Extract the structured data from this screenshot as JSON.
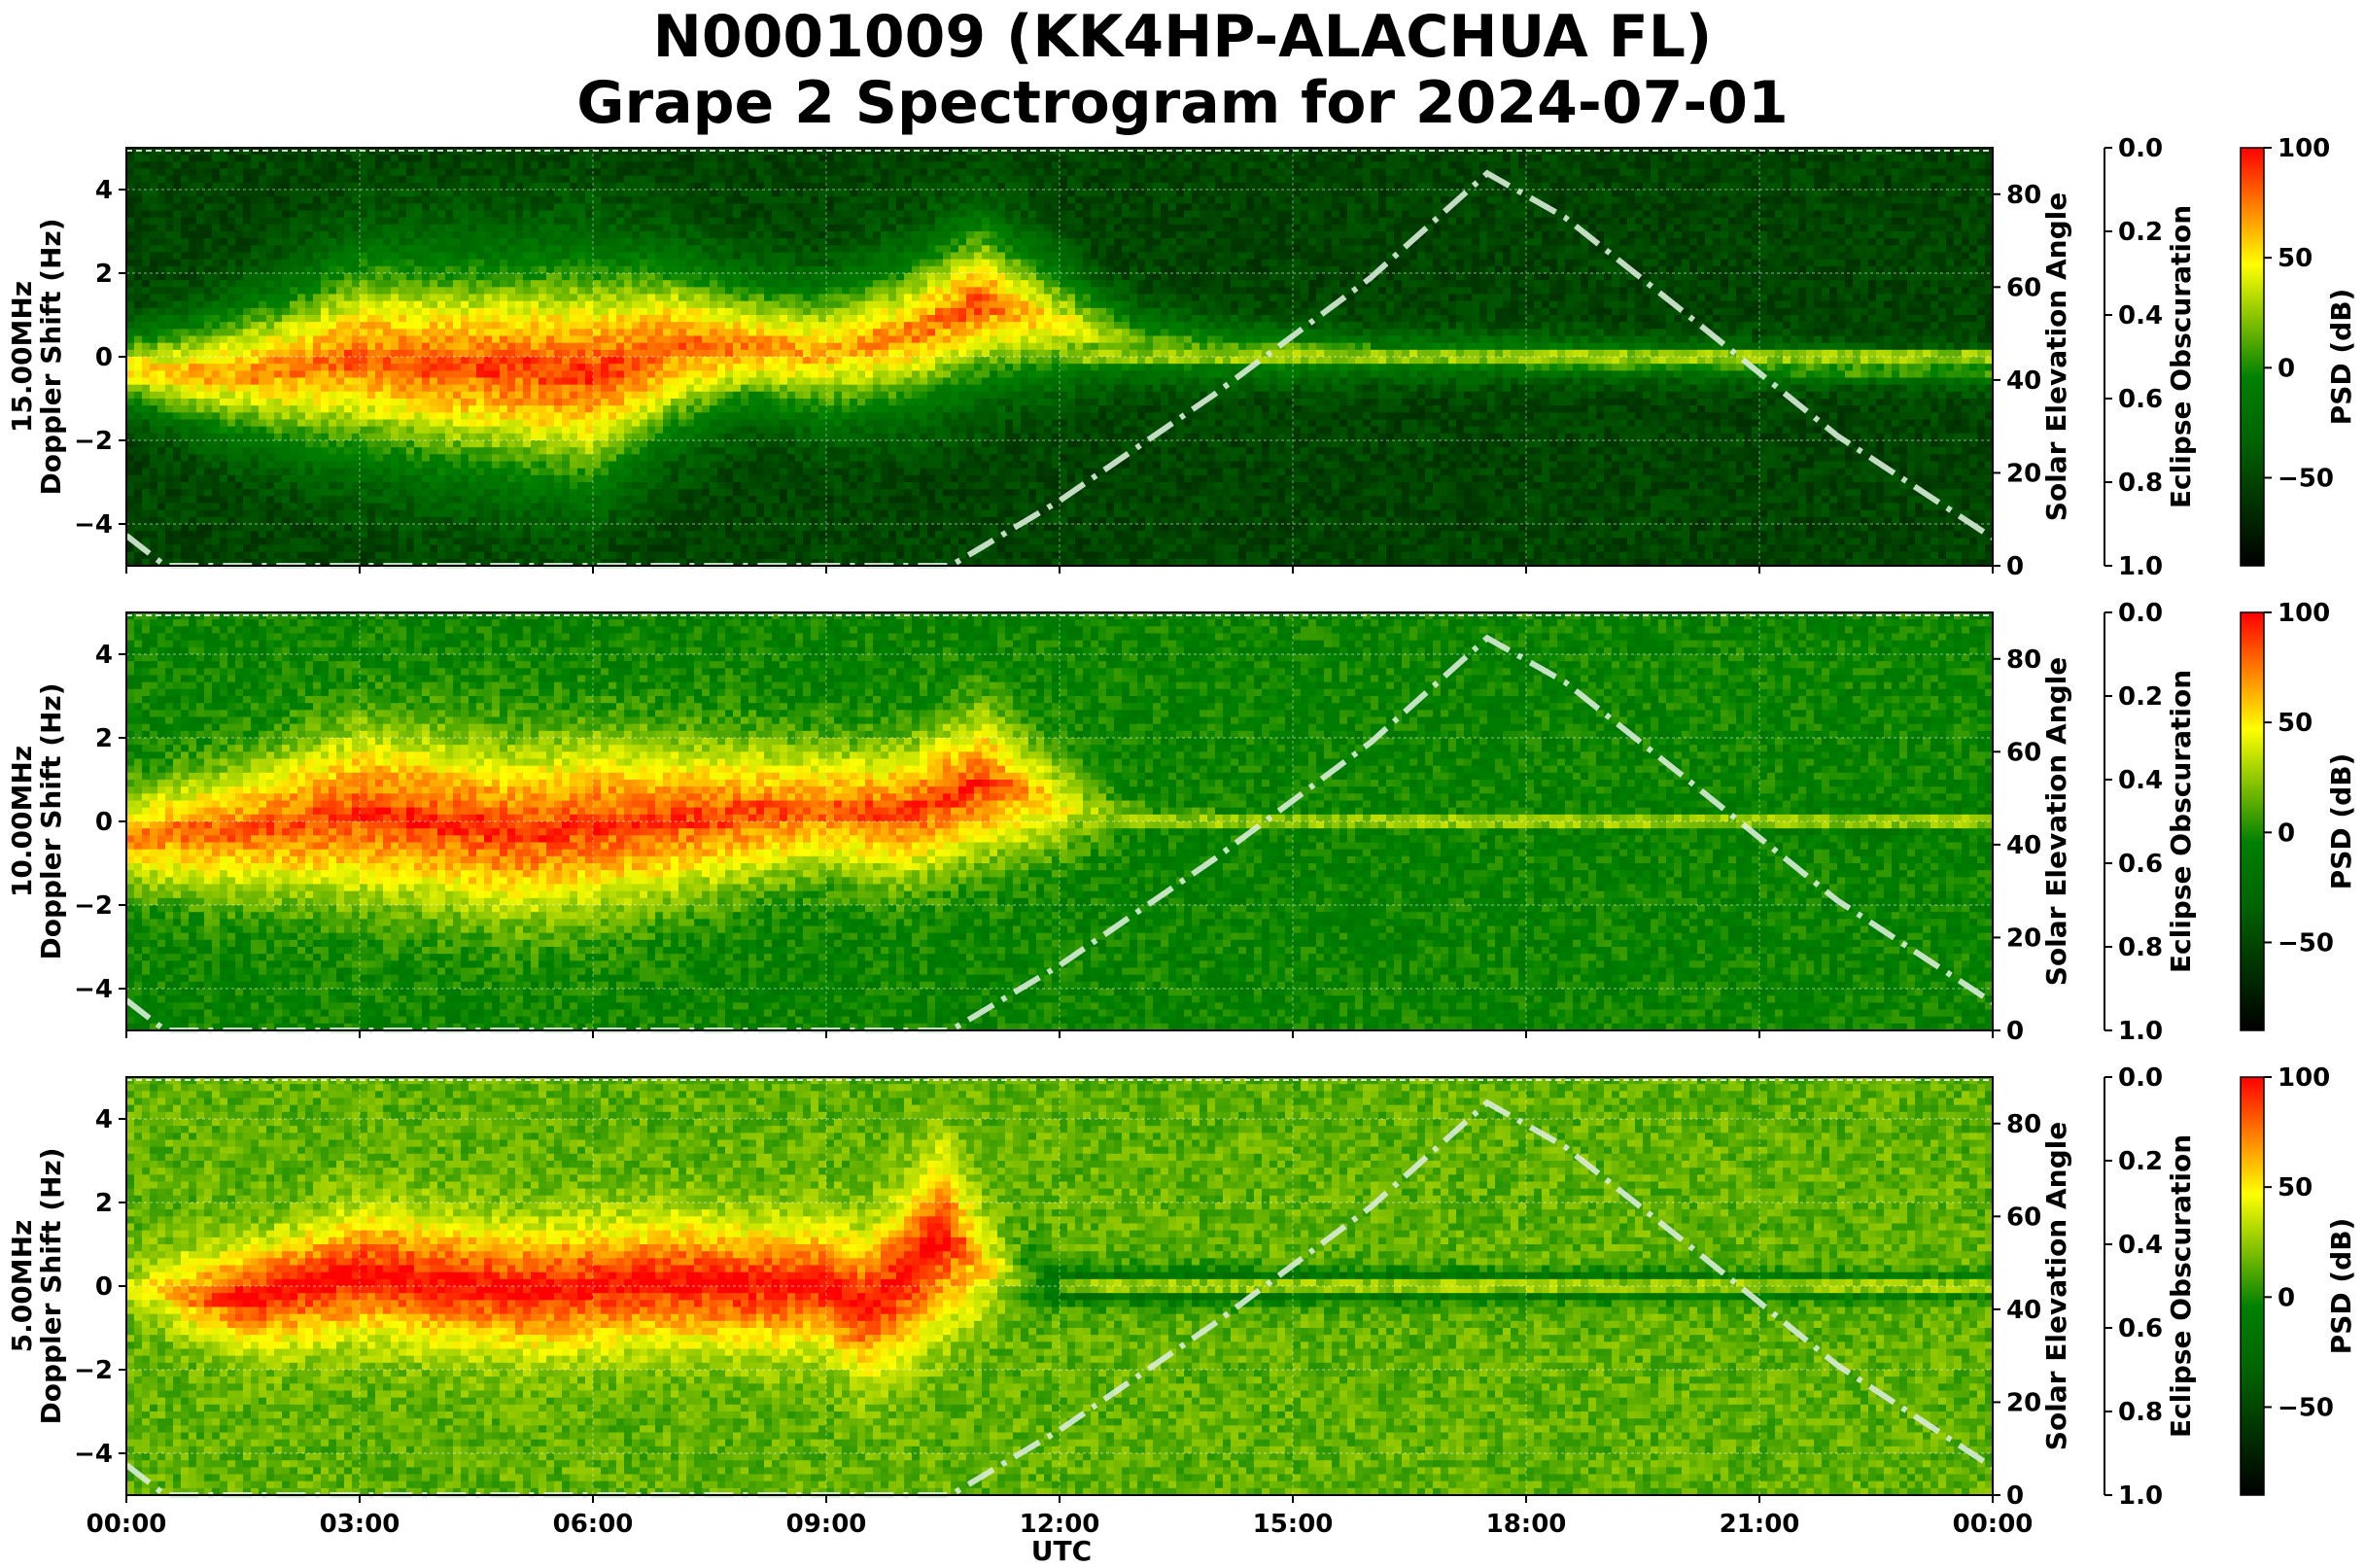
{
  "title_line1": "N0001009 (KK4HP-ALACHUA FL)",
  "title_line2": "Grape 2 Spectrogram for 2024-07-01",
  "chart_data": {
    "type": "heatmap",
    "x_label": "UTC",
    "x_ticks": [
      "00:00",
      "03:00",
      "06:00",
      "09:00",
      "12:00",
      "15:00",
      "18:00",
      "21:00",
      "00:00"
    ],
    "x_range_hours": [
      0,
      24
    ],
    "y_ylim": [
      -5,
      5
    ],
    "y_ticks": [
      4,
      2,
      0,
      -2,
      -4
    ],
    "y_tick_labels": [
      "4",
      "2",
      "0",
      "−2",
      "−4"
    ],
    "elev_label": "Solar Elevation Angle",
    "elev_ylim": [
      0,
      90
    ],
    "elev_ticks": [
      "0",
      "20",
      "40",
      "60",
      "80"
    ],
    "eclipse_label": "Eclipse Obscuration",
    "eclipse_ylim": [
      1.0,
      0.0
    ],
    "eclipse_ticks": [
      "0.0",
      "0.2",
      "0.4",
      "0.6",
      "0.8",
      "1.0"
    ],
    "colorbar_label": "PSD (dB)",
    "colorbar_range": [
      -90,
      100
    ],
    "colorbar_ticks": [
      100,
      50,
      0,
      -50
    ],
    "colorbar_tick_labels": [
      "100",
      "50",
      "0",
      "−50"
    ],
    "colormap": [
      "#000000",
      "#006400",
      "#008000",
      "#ffff00",
      "#ff0000"
    ],
    "solar_elevation": {
      "style": "dash-dot",
      "color": "#d8ecd8",
      "points": [
        [
          0,
          6.5
        ],
        [
          0.5,
          0
        ],
        [
          10.6,
          0
        ],
        [
          12,
          14
        ],
        [
          14,
          37
        ],
        [
          16,
          62
        ],
        [
          17.5,
          84.5
        ],
        [
          18.5,
          75
        ],
        [
          20,
          55
        ],
        [
          22,
          28
        ],
        [
          24,
          6
        ]
      ]
    },
    "panels": [
      {
        "ylabel_freq": "15.00MHz",
        "ylabel": "Doppler Shift (Hz)",
        "base_level": 0.2,
        "trace": [
          [
            0,
            -0.3
          ],
          [
            1,
            -0.4
          ],
          [
            2,
            -0.3
          ],
          [
            3,
            0
          ],
          [
            4,
            -0.2
          ],
          [
            5,
            -0.3
          ],
          [
            6,
            -0.4
          ],
          [
            7,
            0.2
          ],
          [
            8,
            0.3
          ],
          [
            9,
            0.1
          ],
          [
            10,
            0.5
          ],
          [
            11,
            1.3
          ],
          [
            12,
            0.8
          ],
          [
            13,
            0.3
          ],
          [
            14,
            0.1
          ],
          [
            16,
            0
          ],
          [
            18,
            0
          ],
          [
            20,
            -0.1
          ],
          [
            22,
            -0.2
          ],
          [
            24,
            -0.3
          ]
        ],
        "spread": [
          [
            0,
            0.6
          ],
          [
            3,
            1.6
          ],
          [
            6,
            1.8
          ],
          [
            8,
            1.0
          ],
          [
            11,
            1.3
          ],
          [
            13,
            0.6
          ],
          [
            16,
            0.4
          ],
          [
            24,
            0.3
          ]
        ],
        "intensity": [
          [
            0,
            0.7
          ],
          [
            3,
            0.85
          ],
          [
            6,
            0.9
          ],
          [
            9,
            0.75
          ],
          [
            11,
            0.85
          ],
          [
            13,
            0.5
          ],
          [
            16,
            0.45
          ],
          [
            20,
            0.45
          ],
          [
            24,
            0.45
          ]
        ]
      },
      {
        "ylabel_freq": "10.00MHz",
        "ylabel": "Doppler Shift (Hz)",
        "base_level": 0.45,
        "trace": [
          [
            0,
            -0.4
          ],
          [
            1.5,
            -0.2
          ],
          [
            3,
            0.2
          ],
          [
            4,
            0
          ],
          [
            5,
            -0.3
          ],
          [
            6,
            -0.1
          ],
          [
            7,
            0
          ],
          [
            8,
            0.2
          ],
          [
            9,
            0.3
          ],
          [
            10,
            0.2
          ],
          [
            11,
            0.9
          ],
          [
            12,
            0.4
          ],
          [
            13,
            0.2
          ],
          [
            14,
            0
          ],
          [
            18,
            0
          ],
          [
            24,
            0
          ]
        ],
        "spread": [
          [
            0,
            0.8
          ],
          [
            3,
            1.4
          ],
          [
            6,
            1.4
          ],
          [
            9,
            1.0
          ],
          [
            11,
            1.2
          ],
          [
            13,
            0.5
          ],
          [
            16,
            0.4
          ],
          [
            24,
            0.3
          ]
        ],
        "intensity": [
          [
            0,
            0.8
          ],
          [
            3,
            0.9
          ],
          [
            6,
            0.9
          ],
          [
            9,
            0.85
          ],
          [
            11,
            0.9
          ],
          [
            13,
            0.45
          ],
          [
            16,
            0.45
          ],
          [
            24,
            0.4
          ]
        ]
      },
      {
        "ylabel_freq": "5.00MHz",
        "ylabel": "Doppler Shift (Hz)",
        "base_level": 0.55,
        "trace": [
          [
            0,
            0
          ],
          [
            1.5,
            -0.3
          ],
          [
            3,
            0.3
          ],
          [
            4,
            0.1
          ],
          [
            5,
            -0.1
          ],
          [
            6,
            0
          ],
          [
            7,
            0.1
          ],
          [
            8,
            0
          ],
          [
            9,
            0
          ],
          [
            9.5,
            -0.5
          ],
          [
            10,
            0.2
          ],
          [
            10.5,
            1.2
          ],
          [
            11,
            0.5
          ],
          [
            12,
            0
          ],
          [
            24,
            0
          ]
        ],
        "spread": [
          [
            0,
            0.6
          ],
          [
            3,
            1.0
          ],
          [
            6,
            1.0
          ],
          [
            9,
            1.0
          ],
          [
            10.5,
            1.4
          ],
          [
            12,
            0.3
          ],
          [
            24,
            0.2
          ]
        ],
        "intensity": [
          [
            0,
            0.6
          ],
          [
            1.5,
            0.95
          ],
          [
            6,
            0.95
          ],
          [
            9,
            0.95
          ],
          [
            10.5,
            0.95
          ],
          [
            12,
            0.3
          ],
          [
            24,
            0.3
          ]
        ]
      }
    ]
  }
}
